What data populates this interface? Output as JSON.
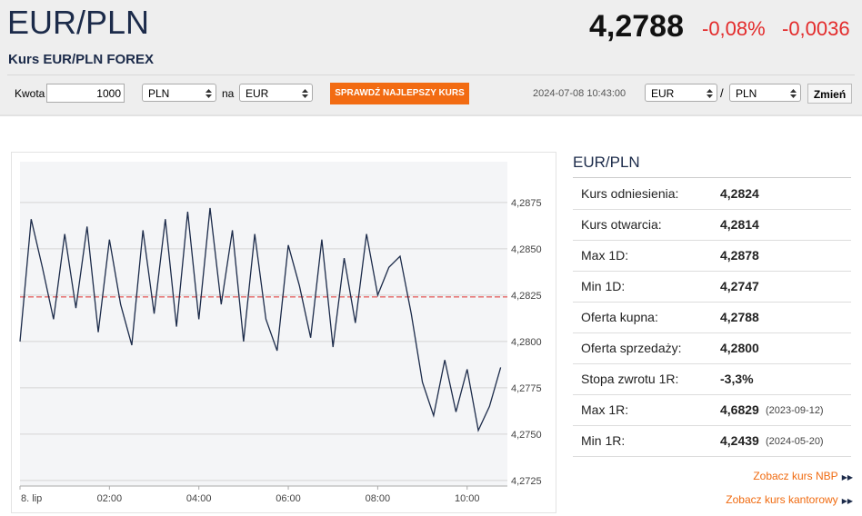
{
  "header": {
    "title": "EUR/PLN",
    "subtitle": "Kurs EUR/PLN FOREX",
    "price": "4,2788",
    "change_pct": "-0,08%",
    "change_abs": "-0,0036"
  },
  "form": {
    "amount_label": "Kwota",
    "amount": "1000",
    "from": "PLN",
    "na": "na",
    "to": "EUR",
    "button": "SPRAWDŹ NAJLEPSZY KURS",
    "timestamp": "2024-07-08 10:43:00",
    "pair_from": "EUR",
    "slash": "/",
    "pair_to": "PLN",
    "swap": "Zmień"
  },
  "panel": {
    "title": "EUR/PLN",
    "rows": [
      {
        "label": "Kurs odniesienia:",
        "value": "4,2824"
      },
      {
        "label": "Kurs otwarcia:",
        "value": "4,2814"
      },
      {
        "label": "Max 1D:",
        "value": "4,2878"
      },
      {
        "label": "Min 1D:",
        "value": "4,2747"
      },
      {
        "label": "Oferta kupna:",
        "value": "4,2788"
      },
      {
        "label": "Oferta sprzedaży:",
        "value": "4,2800"
      },
      {
        "label": "Stopa zwrotu 1R:",
        "value": "-3,3%"
      },
      {
        "label": "Max 1R:",
        "value": "4,6829",
        "date": "(2023-09-12)"
      },
      {
        "label": "Min 1R:",
        "value": "4,2439",
        "date": "(2024-05-20)"
      }
    ],
    "links": [
      "Zobacz kurs NBP",
      "Zobacz kurs kantorowy"
    ]
  },
  "chart": {
    "type": "line",
    "color": "#1c2b4a",
    "reference_line": 4.2824,
    "reference_color": "#e03030",
    "x": [
      0,
      0.25,
      0.5,
      0.75,
      1,
      1.25,
      1.5,
      1.75,
      2,
      2.25,
      2.5,
      2.75,
      3,
      3.25,
      3.5,
      3.75,
      4,
      4.25,
      4.5,
      4.75,
      5,
      5.25,
      5.5,
      5.75,
      6,
      6.25,
      6.5,
      6.75,
      7,
      7.25,
      7.5,
      7.75,
      8,
      8.25,
      8.5,
      8.75,
      9,
      9.25,
      9.5,
      9.75,
      10,
      10.25,
      10.5,
      10.75
    ],
    "values": [
      4.28,
      4.2866,
      4.284,
      4.2812,
      4.2858,
      4.2818,
      4.2862,
      4.2805,
      4.2855,
      4.282,
      4.2798,
      4.286,
      4.2815,
      4.2866,
      4.2808,
      4.287,
      4.2812,
      4.2872,
      4.282,
      4.286,
      4.28,
      4.2858,
      4.2812,
      4.2795,
      4.2852,
      4.283,
      4.2802,
      4.2855,
      4.2797,
      4.2845,
      4.281,
      4.2858,
      4.2825,
      4.284,
      4.2846,
      4.2815,
      4.2778,
      4.276,
      4.279,
      4.2762,
      4.2785,
      4.2752,
      4.2765,
      4.2786
    ],
    "xlim": [
      0,
      10.9
    ],
    "ylim": [
      4.2722,
      4.2897
    ],
    "xticks": [
      {
        "value": 0,
        "label": "8. lip"
      },
      {
        "value": 2,
        "label": "02:00"
      },
      {
        "value": 4,
        "label": "04:00"
      },
      {
        "value": 6,
        "label": "06:00"
      },
      {
        "value": 8,
        "label": "08:00"
      },
      {
        "value": 10,
        "label": "10:00"
      }
    ],
    "yticks": [
      {
        "value": 4.2725,
        "label": "4,2725"
      },
      {
        "value": 4.275,
        "label": "4,2750"
      },
      {
        "value": 4.2775,
        "label": "4,2775"
      },
      {
        "value": 4.28,
        "label": "4,2800"
      },
      {
        "value": 4.2825,
        "label": "4,2825"
      },
      {
        "value": 4.285,
        "label": "4,2850"
      },
      {
        "value": 4.2875,
        "label": "4,2875"
      }
    ],
    "grid": true
  }
}
